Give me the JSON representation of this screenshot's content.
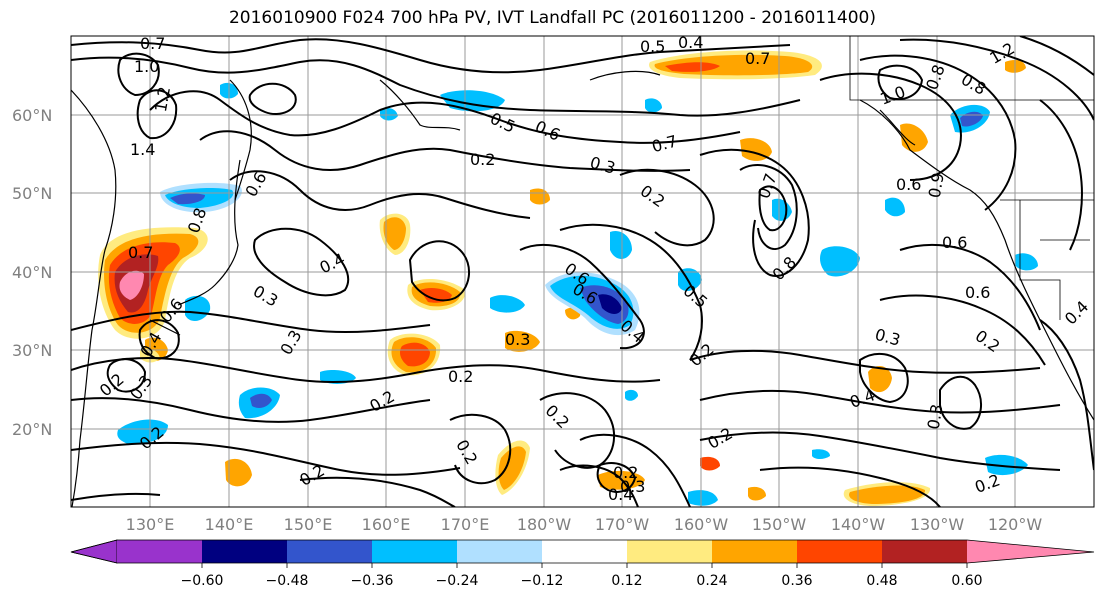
{
  "title": "2016010900 F024 700 hPa PV, IVT Landfall PC (2016011200 - 2016011400)",
  "lat_labels": [
    "60°N",
    "50°N",
    "40°N",
    "30°N",
    "20°N"
  ],
  "lon_labels": [
    "130°E",
    "140°E",
    "150°E",
    "160°E",
    "170°E",
    "180°W",
    "170°W",
    "160°W",
    "150°W",
    "140°W",
    "130°W",
    "120°W"
  ],
  "colorbar": {
    "colors": [
      "#9933cc",
      "#000080",
      "#3355cc",
      "#00bfff",
      "#b0e0ff",
      "#ffffff",
      "#ffeb80",
      "#ffa500",
      "#ff4500",
      "#b22222",
      "#ff88b0"
    ],
    "labels": [
      "−0.60",
      "−0.48",
      "−0.36",
      "−0.24",
      "−0.12",
      "0.12",
      "0.24",
      "0.36",
      "0.48",
      "0.60"
    ]
  },
  "contour_labels": [
    "0.7",
    "1.0",
    "1.2",
    "1.4",
    "0.5",
    "0.4",
    "0.7",
    "1.0",
    "0.8",
    "0.8",
    "1.2",
    "0.5",
    "0.6",
    "0.3",
    "0.7",
    "0.6",
    "0.2",
    "0.2",
    "0.7",
    "0.9",
    "0.6",
    "0.6",
    "0.4",
    "0.3",
    "0.3",
    "0.4",
    "0.6",
    "0.5",
    "0.6",
    "0.2",
    "0.4",
    "0.3",
    "0.2",
    "0.6",
    "0.2",
    "0.2",
    "0.3",
    "0.2",
    "0.2",
    "0.4",
    "0.3",
    "0.3",
    "0.2",
    "0.2",
    "0.4",
    "0.3",
    "0.2",
    "0.2",
    "0.4",
    "0.2",
    "0.8",
    "0.6",
    "0.8",
    "0.7",
    "0.2"
  ]
}
